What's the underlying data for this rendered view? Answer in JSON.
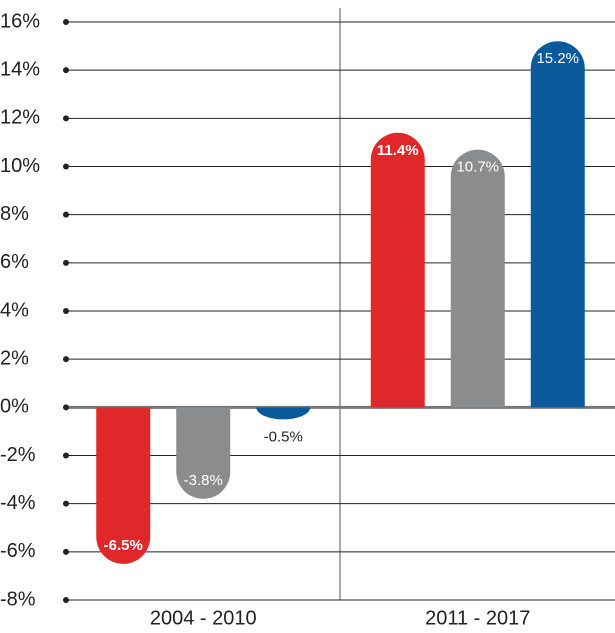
{
  "chart_data": {
    "type": "bar",
    "categories": [
      "2004 - 2010",
      "2011 - 2017"
    ],
    "series": [
      {
        "color": "#e0282a",
        "values": [
          -6.5,
          11.4
        ],
        "value_labels": [
          "-6.5%",
          "11.4%"
        ]
      },
      {
        "color": "#8a8c8e",
        "values": [
          -3.8,
          10.7
        ],
        "value_labels": [
          "-3.8%",
          "10.7%"
        ]
      },
      {
        "color": "#0b5a9c",
        "values": [
          -0.5,
          15.2
        ],
        "value_labels": [
          "-0.5%",
          "15.2%"
        ]
      }
    ],
    "ylim": [
      -8,
      16
    ],
    "yticks": [
      {
        "value": -8,
        "label": "-8%"
      },
      {
        "value": -6,
        "label": "-6%"
      },
      {
        "value": -4,
        "label": "-4%"
      },
      {
        "value": -2,
        "label": "-2%"
      },
      {
        "value": 0,
        "label": "0%"
      },
      {
        "value": 2,
        "label": "2%"
      },
      {
        "value": 4,
        "label": "4%"
      },
      {
        "value": 6,
        "label": "6%"
      },
      {
        "value": 8,
        "label": "8%"
      },
      {
        "value": 10,
        "label": "10%"
      },
      {
        "value": 12,
        "label": "12%"
      },
      {
        "value": 14,
        "label": "14%"
      },
      {
        "value": 16,
        "label": "16%"
      }
    ],
    "grid": true
  }
}
